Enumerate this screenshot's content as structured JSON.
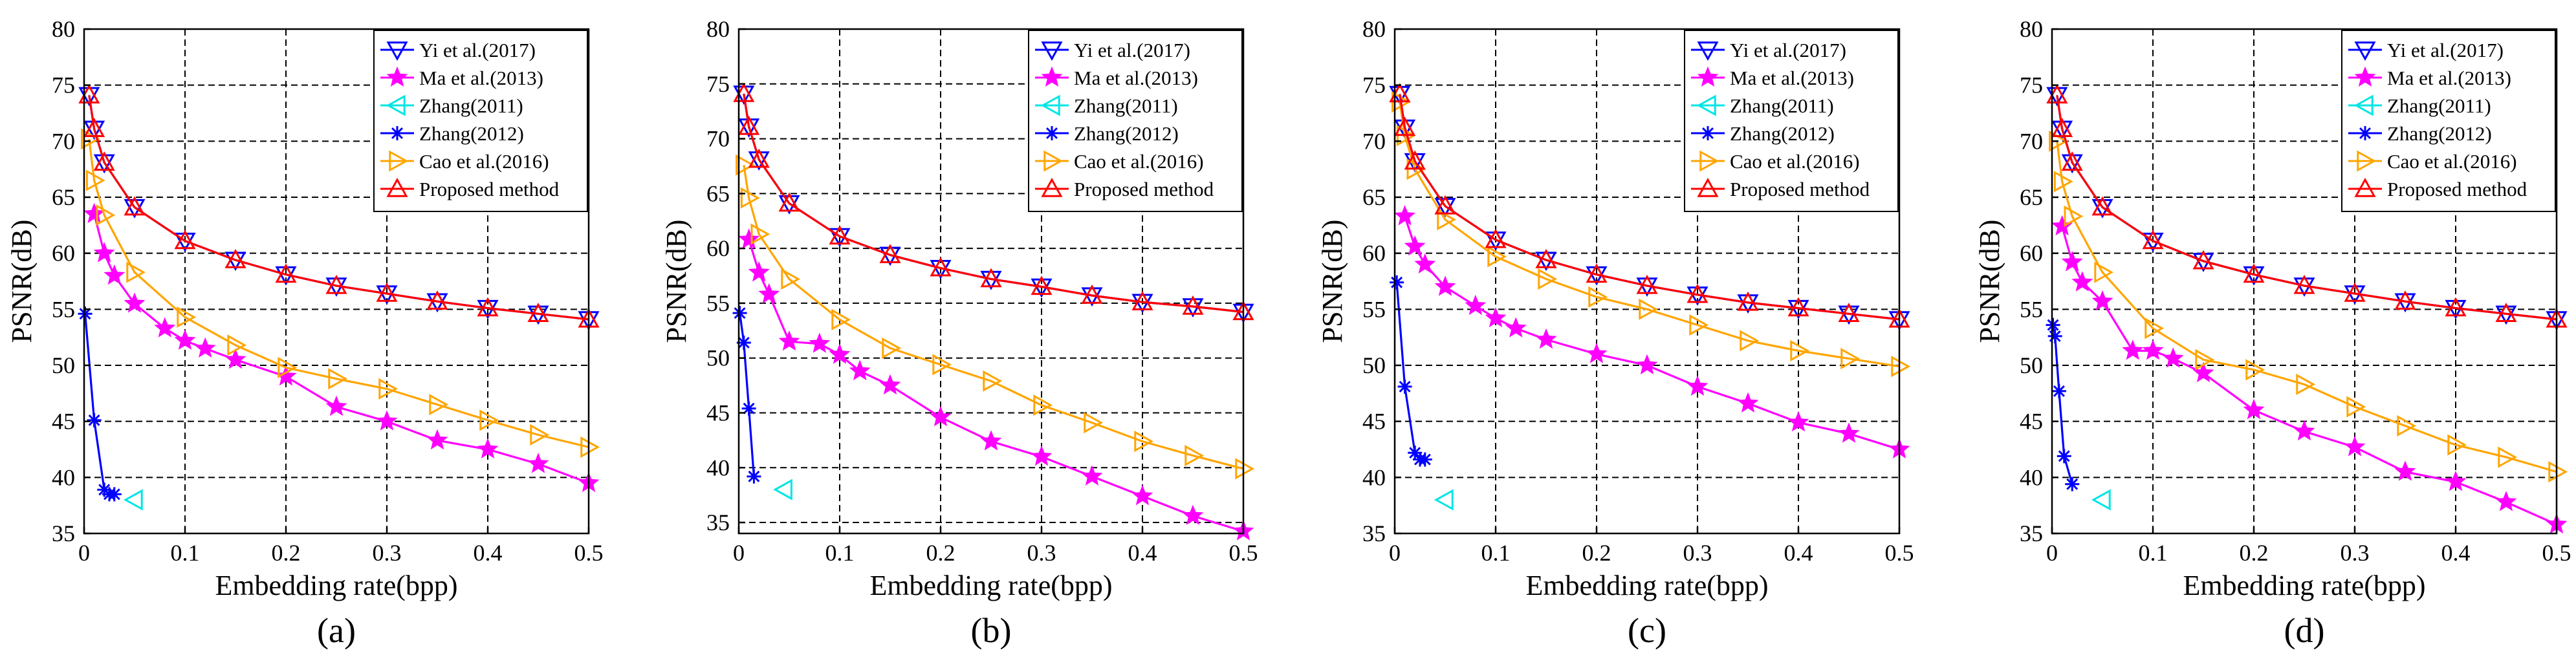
{
  "chart_data": [
    {
      "type": "line",
      "panel_label": "(a)",
      "xlabel": "Embedding rate(bpp)",
      "ylabel": "PSNR(dB)",
      "xlim": [
        0,
        0.5
      ],
      "ylim": [
        35,
        80
      ],
      "xticks": [
        "0",
        "0.1",
        "0.2",
        "0.3",
        "0.4",
        "0.5"
      ],
      "yticks": [
        "35",
        "40",
        "45",
        "50",
        "55",
        "60",
        "65",
        "70",
        "75",
        "80"
      ],
      "grid": true,
      "legend_position": "top-right",
      "series": [
        {
          "name": "Yi et al.(2017)",
          "color": "#0000ff",
          "marker": "triangle-down",
          "x": [
            0.005,
            0.01,
            0.02,
            0.05,
            0.1,
            0.15,
            0.2,
            0.25,
            0.3,
            0.35,
            0.4,
            0.45,
            0.5
          ],
          "y": [
            74.1,
            71.1,
            68.1,
            64.1,
            61.1,
            59.4,
            58.1,
            57.1,
            56.4,
            55.7,
            55.1,
            54.6,
            54.1
          ]
        },
        {
          "name": "Ma et al.(2013)",
          "color": "#ff00ff",
          "marker": "star",
          "x": [
            0.01,
            0.02,
            0.03,
            0.05,
            0.08,
            0.1,
            0.12,
            0.15,
            0.2,
            0.25,
            0.3,
            0.35,
            0.4,
            0.45,
            0.5
          ],
          "y": [
            63.5,
            60.0,
            58.0,
            55.5,
            53.3,
            52.2,
            51.5,
            50.5,
            49.0,
            46.3,
            45.0,
            43.3,
            42.5,
            41.2,
            39.5
          ]
        },
        {
          "name": "Zhang(2011)",
          "color": "#00e5e5",
          "marker": "triangle-left",
          "x": [
            0.05
          ],
          "y": [
            38.0
          ]
        },
        {
          "name": "Zhang(2012)",
          "color": "#0000ff",
          "marker": "asterisk",
          "x": [
            0.001,
            0.01,
            0.02,
            0.025,
            0.03
          ],
          "y": [
            54.6,
            45.1,
            38.9,
            38.5,
            38.5
          ]
        },
        {
          "name": "Cao et al.(2016)",
          "color": "#ffa500",
          "marker": "triangle-right",
          "x": [
            0.005,
            0.01,
            0.02,
            0.05,
            0.1,
            0.15,
            0.2,
            0.25,
            0.3,
            0.35,
            0.4,
            0.45,
            0.5
          ],
          "y": [
            70.2,
            66.5,
            63.4,
            58.3,
            54.3,
            51.8,
            49.8,
            48.8,
            47.9,
            46.5,
            45.1,
            43.8,
            42.7
          ]
        },
        {
          "name": "Proposed method",
          "color": "#ff0000",
          "marker": "triangle-up",
          "x": [
            0.005,
            0.01,
            0.02,
            0.05,
            0.1,
            0.15,
            0.2,
            0.25,
            0.3,
            0.35,
            0.4,
            0.45,
            0.5
          ],
          "y": [
            74.1,
            71.1,
            68.1,
            64.1,
            61.1,
            59.4,
            58.1,
            57.1,
            56.4,
            55.7,
            55.1,
            54.6,
            54.1
          ]
        }
      ]
    },
    {
      "type": "line",
      "panel_label": "(b)",
      "xlabel": "Embedding rate(bpp)",
      "ylabel": "PSNR(dB)",
      "xlim": [
        0,
        0.5
      ],
      "ylim": [
        34,
        80
      ],
      "xticks": [
        "0",
        "0.1",
        "0.2",
        "0.3",
        "0.4",
        "0.5"
      ],
      "yticks": [
        "35",
        "40",
        "45",
        "50",
        "55",
        "60",
        "65",
        "70",
        "75",
        "80"
      ],
      "grid": true,
      "legend_position": "top-right",
      "series": [
        {
          "name": "Yi et al.(2017)",
          "color": "#0000ff",
          "marker": "triangle-down",
          "x": [
            0.005,
            0.01,
            0.02,
            0.05,
            0.1,
            0.15,
            0.2,
            0.25,
            0.3,
            0.35,
            0.4,
            0.45,
            0.5
          ],
          "y": [
            74.1,
            71.1,
            68.1,
            64.1,
            61.1,
            59.4,
            58.2,
            57.2,
            56.5,
            55.7,
            55.1,
            54.7,
            54.2
          ]
        },
        {
          "name": "Ma et al.(2013)",
          "color": "#ff00ff",
          "marker": "star",
          "x": [
            0.01,
            0.02,
            0.03,
            0.05,
            0.08,
            0.1,
            0.12,
            0.15,
            0.2,
            0.25,
            0.3,
            0.35,
            0.4,
            0.45,
            0.5
          ],
          "y": [
            60.8,
            57.8,
            55.8,
            51.5,
            51.3,
            50.3,
            48.8,
            47.5,
            44.6,
            42.4,
            41.0,
            39.2,
            37.4,
            35.6,
            34.2
          ]
        },
        {
          "name": "Zhang(2011)",
          "color": "#00e5e5",
          "marker": "triangle-left",
          "x": [
            0.045
          ],
          "y": [
            38.0
          ]
        },
        {
          "name": "Zhang(2012)",
          "color": "#0000ff",
          "marker": "asterisk",
          "x": [
            0.001,
            0.005,
            0.01,
            0.015
          ],
          "y": [
            54.1,
            51.4,
            45.4,
            39.2
          ]
        },
        {
          "name": "Cao et al.(2016)",
          "color": "#ffa500",
          "marker": "triangle-right",
          "x": [
            0.005,
            0.01,
            0.02,
            0.05,
            0.1,
            0.15,
            0.2,
            0.25,
            0.3,
            0.35,
            0.4,
            0.45,
            0.5
          ],
          "y": [
            67.6,
            64.6,
            61.3,
            57.2,
            53.5,
            50.9,
            49.4,
            47.9,
            45.7,
            44.1,
            42.4,
            41.1,
            39.9
          ]
        },
        {
          "name": "Proposed method",
          "color": "#ff0000",
          "marker": "triangle-up",
          "x": [
            0.005,
            0.01,
            0.02,
            0.05,
            0.1,
            0.15,
            0.2,
            0.25,
            0.3,
            0.35,
            0.4,
            0.45,
            0.5
          ],
          "y": [
            74.1,
            71.1,
            68.1,
            64.1,
            61.1,
            59.4,
            58.2,
            57.2,
            56.5,
            55.7,
            55.1,
            54.7,
            54.2
          ]
        }
      ]
    },
    {
      "type": "line",
      "panel_label": "(c)",
      "xlabel": "Embedding rate(bpp)",
      "ylabel": "PSNR(dB)",
      "xlim": [
        0,
        0.5
      ],
      "ylim": [
        35,
        80
      ],
      "xticks": [
        "0",
        "0.1",
        "0.2",
        "0.3",
        "0.4",
        "0.5"
      ],
      "yticks": [
        "35",
        "40",
        "45",
        "50",
        "55",
        "60",
        "65",
        "70",
        "75",
        "80"
      ],
      "grid": true,
      "legend_position": "top-right",
      "series": [
        {
          "name": "Yi et al.(2017)",
          "color": "#0000ff",
          "marker": "triangle-down",
          "x": [
            0.005,
            0.01,
            0.02,
            0.05,
            0.1,
            0.15,
            0.2,
            0.25,
            0.3,
            0.35,
            0.4,
            0.45,
            0.5
          ],
          "y": [
            74.2,
            71.2,
            68.2,
            64.2,
            61.2,
            59.4,
            58.1,
            57.1,
            56.3,
            55.6,
            55.1,
            54.6,
            54.1
          ]
        },
        {
          "name": "Ma et al.(2013)",
          "color": "#ff00ff",
          "marker": "star",
          "x": [
            0.01,
            0.02,
            0.03,
            0.05,
            0.08,
            0.1,
            0.12,
            0.15,
            0.2,
            0.25,
            0.3,
            0.35,
            0.4,
            0.45,
            0.5
          ],
          "y": [
            63.3,
            60.6,
            59.0,
            57.0,
            55.3,
            54.2,
            53.3,
            52.3,
            51.0,
            50.0,
            48.1,
            46.6,
            44.9,
            43.9,
            42.5
          ]
        },
        {
          "name": "Zhang(2011)",
          "color": "#00e5e5",
          "marker": "triangle-left",
          "x": [
            0.05
          ],
          "y": [
            38.0
          ]
        },
        {
          "name": "Zhang(2012)",
          "color": "#0000ff",
          "marker": "asterisk",
          "x": [
            0.002,
            0.01,
            0.02,
            0.025,
            0.03
          ],
          "y": [
            57.4,
            48.1,
            42.2,
            41.6,
            41.6
          ]
        },
        {
          "name": "Cao et al.(2016)",
          "color": "#ffa500",
          "marker": "triangle-right",
          "x": [
            0.005,
            0.01,
            0.02,
            0.05,
            0.1,
            0.15,
            0.2,
            0.25,
            0.3,
            0.35,
            0.4,
            0.45,
            0.5
          ],
          "y": [
            73.5,
            70.5,
            67.5,
            63.0,
            59.7,
            57.7,
            56.1,
            55.0,
            53.6,
            52.2,
            51.3,
            50.6,
            49.9
          ]
        },
        {
          "name": "Proposed method",
          "color": "#ff0000",
          "marker": "triangle-up",
          "x": [
            0.005,
            0.01,
            0.02,
            0.05,
            0.1,
            0.15,
            0.2,
            0.25,
            0.3,
            0.35,
            0.4,
            0.45,
            0.5
          ],
          "y": [
            74.2,
            71.2,
            68.2,
            64.2,
            61.2,
            59.4,
            58.1,
            57.1,
            56.3,
            55.6,
            55.1,
            54.6,
            54.1
          ]
        }
      ]
    },
    {
      "type": "line",
      "panel_label": "(d)",
      "xlabel": "Embedding rate(bpp)",
      "ylabel": "PSNR(dB)",
      "xlim": [
        0,
        0.5
      ],
      "ylim": [
        35,
        80
      ],
      "xticks": [
        "0",
        "0.1",
        "0.2",
        "0.3",
        "0.4",
        "0.5"
      ],
      "yticks": [
        "35",
        "40",
        "45",
        "50",
        "55",
        "60",
        "65",
        "70",
        "75",
        "80"
      ],
      "grid": true,
      "legend_position": "top-right",
      "series": [
        {
          "name": "Yi et al.(2017)",
          "color": "#0000ff",
          "marker": "triangle-down",
          "x": [
            0.005,
            0.01,
            0.02,
            0.05,
            0.1,
            0.15,
            0.2,
            0.25,
            0.3,
            0.35,
            0.4,
            0.45,
            0.5
          ],
          "y": [
            74.1,
            71.1,
            68.1,
            64.1,
            61.1,
            59.3,
            58.1,
            57.1,
            56.4,
            55.7,
            55.1,
            54.6,
            54.1
          ]
        },
        {
          "name": "Ma et al.(2013)",
          "color": "#ff00ff",
          "marker": "star",
          "x": [
            0.01,
            0.02,
            0.03,
            0.05,
            0.08,
            0.1,
            0.12,
            0.15,
            0.2,
            0.25,
            0.3,
            0.35,
            0.4,
            0.45,
            0.5
          ],
          "y": [
            62.4,
            59.2,
            57.4,
            55.7,
            51.3,
            51.3,
            50.6,
            49.3,
            46.0,
            44.1,
            42.7,
            40.5,
            39.6,
            37.8,
            35.8
          ]
        },
        {
          "name": "Zhang(2011)",
          "color": "#00e5e5",
          "marker": "triangle-left",
          "x": [
            0.05
          ],
          "y": [
            38.0
          ]
        },
        {
          "name": "Zhang(2012)",
          "color": "#0000ff",
          "marker": "asterisk",
          "x": [
            0.001,
            0.003,
            0.007,
            0.012,
            0.02
          ],
          "y": [
            53.6,
            52.6,
            47.7,
            41.9,
            39.4
          ]
        },
        {
          "name": "Cao et al.(2016)",
          "color": "#ffa500",
          "marker": "triangle-right",
          "x": [
            0.005,
            0.01,
            0.02,
            0.05,
            0.1,
            0.15,
            0.2,
            0.25,
            0.3,
            0.35,
            0.4,
            0.45,
            0.5
          ],
          "y": [
            70.0,
            66.4,
            63.3,
            58.3,
            53.3,
            50.5,
            49.6,
            48.3,
            46.3,
            44.6,
            42.9,
            41.8,
            40.5
          ]
        },
        {
          "name": "Proposed method",
          "color": "#ff0000",
          "marker": "triangle-up",
          "x": [
            0.005,
            0.01,
            0.02,
            0.05,
            0.1,
            0.15,
            0.2,
            0.25,
            0.3,
            0.35,
            0.4,
            0.45,
            0.5
          ],
          "y": [
            74.1,
            71.1,
            68.1,
            64.1,
            61.1,
            59.3,
            58.1,
            57.1,
            56.4,
            55.7,
            55.1,
            54.6,
            54.1
          ]
        }
      ]
    }
  ]
}
